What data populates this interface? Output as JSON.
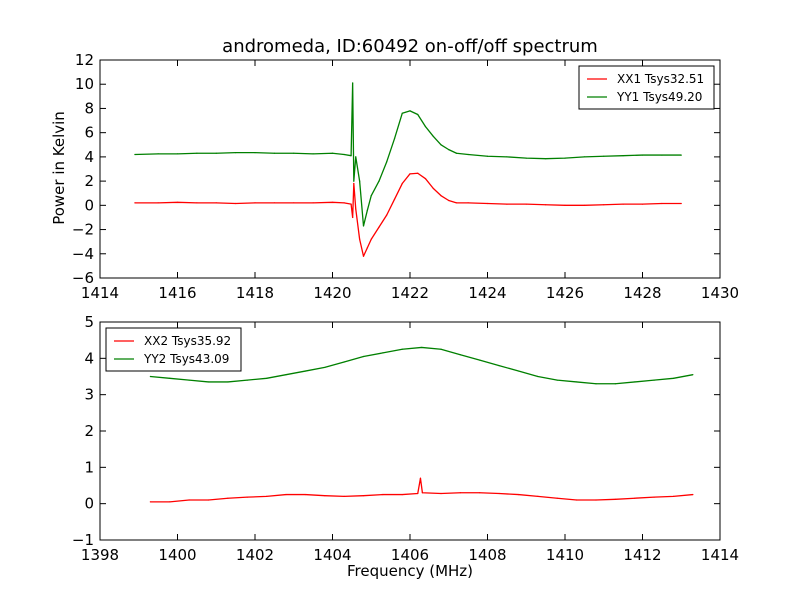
{
  "title": "andromeda, ID:60492 on-off/off spectrum",
  "chart_data": [
    {
      "type": "line",
      "title": "andromeda, ID:60492 on-off/off spectrum",
      "xlabel": "",
      "ylabel": "Power in Kelvin",
      "xlim": [
        1414,
        1430
      ],
      "ylim": [
        -6,
        12
      ],
      "xticks": [
        "1414",
        "1416",
        "1418",
        "1420",
        "1422",
        "1424",
        "1426",
        "1428",
        "1430"
      ],
      "yticks": [
        "−6",
        "−4",
        "−2",
        "0",
        "2",
        "4",
        "6",
        "8",
        "10",
        "12"
      ],
      "legend_position": "top-right",
      "series": [
        {
          "name": "XX1 Tsys32.51",
          "color": "#ff0000",
          "x": [
            1414.9,
            1415.5,
            1416.0,
            1416.5,
            1417.0,
            1417.5,
            1418.0,
            1418.5,
            1419.0,
            1419.5,
            1420.0,
            1420.3,
            1420.48,
            1420.52,
            1420.55,
            1420.6,
            1420.7,
            1420.8,
            1420.9,
            1421.0,
            1421.2,
            1421.4,
            1421.6,
            1421.8,
            1422.0,
            1422.2,
            1422.4,
            1422.6,
            1422.8,
            1423.0,
            1423.2,
            1423.5,
            1424.0,
            1424.5,
            1425.0,
            1425.5,
            1426.0,
            1426.5,
            1427.0,
            1427.5,
            1428.0,
            1428.5,
            1429.0
          ],
          "y": [
            0.2,
            0.2,
            0.25,
            0.2,
            0.2,
            0.15,
            0.2,
            0.2,
            0.2,
            0.2,
            0.25,
            0.2,
            0.1,
            -1.0,
            1.8,
            -0.3,
            -2.8,
            -4.2,
            -3.5,
            -2.8,
            -1.8,
            -0.8,
            0.5,
            1.8,
            2.6,
            2.65,
            2.2,
            1.4,
            0.8,
            0.4,
            0.2,
            0.2,
            0.15,
            0.1,
            0.1,
            0.05,
            0.0,
            0.0,
            0.05,
            0.1,
            0.1,
            0.15,
            0.15
          ]
        },
        {
          "name": "YY1 Tsys49.20",
          "color": "#008000",
          "x": [
            1414.9,
            1415.5,
            1416.0,
            1416.5,
            1417.0,
            1417.5,
            1418.0,
            1418.5,
            1419.0,
            1419.5,
            1420.0,
            1420.3,
            1420.48,
            1420.52,
            1420.55,
            1420.6,
            1420.7,
            1420.8,
            1420.9,
            1421.0,
            1421.2,
            1421.4,
            1421.6,
            1421.8,
            1422.0,
            1422.2,
            1422.4,
            1422.6,
            1422.8,
            1423.0,
            1423.2,
            1423.5,
            1424.0,
            1424.5,
            1425.0,
            1425.5,
            1426.0,
            1426.5,
            1427.0,
            1427.5,
            1428.0,
            1428.5,
            1429.0
          ],
          "y": [
            4.2,
            4.25,
            4.25,
            4.3,
            4.3,
            4.35,
            4.35,
            4.3,
            4.3,
            4.25,
            4.3,
            4.2,
            4.1,
            10.1,
            2.0,
            4.0,
            2.0,
            -1.7,
            -0.4,
            0.8,
            2.0,
            3.6,
            5.5,
            7.6,
            7.8,
            7.5,
            6.5,
            5.7,
            5.0,
            4.6,
            4.3,
            4.2,
            4.05,
            4.0,
            3.9,
            3.85,
            3.9,
            4.0,
            4.05,
            4.1,
            4.15,
            4.15,
            4.15
          ]
        }
      ]
    },
    {
      "type": "line",
      "title": "",
      "xlabel": "Frequency (MHz)",
      "ylabel": "",
      "xlim": [
        1398,
        1414
      ],
      "ylim": [
        -1,
        5
      ],
      "xticks": [
        "1398",
        "1400",
        "1402",
        "1404",
        "1406",
        "1408",
        "1410",
        "1412",
        "1414"
      ],
      "yticks": [
        "−1",
        "0",
        "1",
        "2",
        "3",
        "4",
        "5"
      ],
      "legend_position": "top-left",
      "series": [
        {
          "name": "XX2 Tsys35.92",
          "color": "#ff0000",
          "x": [
            1399.3,
            1399.8,
            1400.3,
            1400.8,
            1401.3,
            1401.8,
            1402.3,
            1402.8,
            1403.3,
            1403.8,
            1404.3,
            1404.8,
            1405.3,
            1405.8,
            1406.2,
            1406.27,
            1406.32,
            1406.8,
            1407.3,
            1407.8,
            1408.3,
            1408.8,
            1409.3,
            1409.8,
            1410.3,
            1410.8,
            1411.3,
            1411.8,
            1412.3,
            1412.8,
            1413.3
          ],
          "y": [
            0.05,
            0.05,
            0.1,
            0.1,
            0.15,
            0.18,
            0.2,
            0.25,
            0.25,
            0.22,
            0.2,
            0.22,
            0.25,
            0.25,
            0.28,
            0.7,
            0.3,
            0.28,
            0.3,
            0.3,
            0.28,
            0.25,
            0.2,
            0.15,
            0.1,
            0.1,
            0.12,
            0.15,
            0.18,
            0.2,
            0.25
          ]
        },
        {
          "name": "YY2 Tsys43.09",
          "color": "#008000",
          "x": [
            1399.3,
            1399.8,
            1400.3,
            1400.8,
            1401.3,
            1401.8,
            1402.3,
            1402.8,
            1403.3,
            1403.8,
            1404.3,
            1404.8,
            1405.3,
            1405.8,
            1406.3,
            1406.8,
            1407.3,
            1407.8,
            1408.3,
            1408.8,
            1409.3,
            1409.8,
            1410.3,
            1410.8,
            1411.3,
            1411.8,
            1412.3,
            1412.8,
            1413.3
          ],
          "y": [
            3.5,
            3.45,
            3.4,
            3.35,
            3.35,
            3.4,
            3.45,
            3.55,
            3.65,
            3.75,
            3.9,
            4.05,
            4.15,
            4.25,
            4.3,
            4.25,
            4.1,
            3.95,
            3.8,
            3.65,
            3.5,
            3.4,
            3.35,
            3.3,
            3.3,
            3.35,
            3.4,
            3.45,
            3.55
          ]
        }
      ]
    }
  ]
}
